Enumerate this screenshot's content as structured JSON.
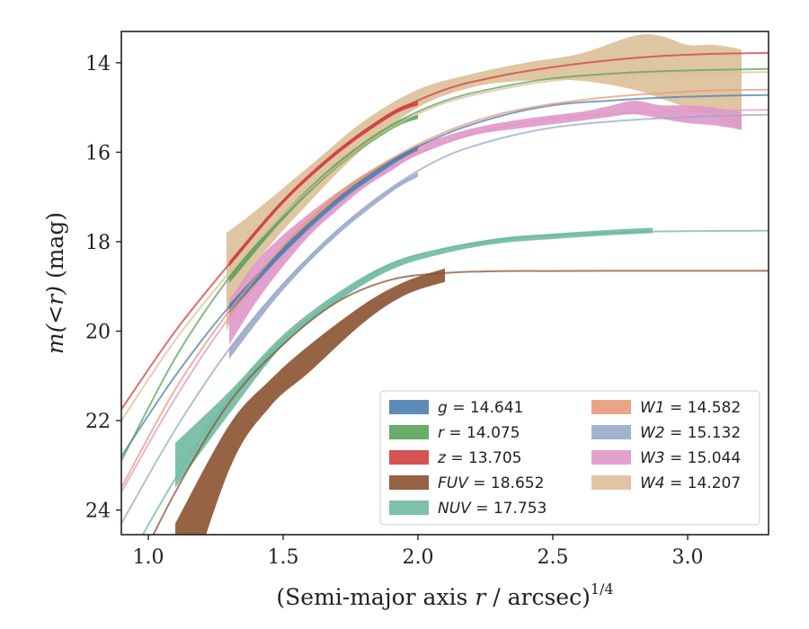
{
  "chart_data": {
    "type": "line",
    "xlabel_main": "(Semi-major axis ",
    "xlabel_var": "r",
    "xlabel_tail": " / arcsec)",
    "xlabel_sup": "1/4",
    "ylabel_main": "m(<r)",
    "ylabel_tail": " (mag)",
    "xlim": [
      0.9,
      3.3
    ],
    "ylim": [
      24.55,
      13.3
    ],
    "y_inverted": true,
    "xticks": [
      1.0,
      1.5,
      2.0,
      2.5,
      3.0
    ],
    "xtick_labels": [
      "1.0",
      "1.5",
      "2.0",
      "2.5",
      "3.0"
    ],
    "yticks": [
      14,
      16,
      18,
      20,
      22,
      24
    ],
    "ytick_labels": [
      "14",
      "16",
      "18",
      "20",
      "22",
      "24"
    ],
    "grid": false,
    "legend_position": "lower-right",
    "series": [
      {
        "name": "g",
        "mag": "14.641",
        "color": "#4c7fb0",
        "model_x": [
          0.9,
          1.1,
          1.3,
          1.5,
          1.7,
          1.9,
          2.1,
          2.3,
          2.5,
          2.7,
          2.9,
          3.1,
          3.3
        ],
        "model_y": [
          22.8,
          21.0,
          19.45,
          18.2,
          17.05,
          16.2,
          15.6,
          15.2,
          14.95,
          14.85,
          14.78,
          14.74,
          14.72
        ],
        "obs_x": [
          1.3,
          1.5,
          1.7,
          1.9,
          2.0
        ],
        "obs_y": [
          19.5,
          18.2,
          17.1,
          16.25,
          15.9
        ],
        "obs_err": [
          0.1,
          0.08,
          0.06,
          0.05,
          0.05
        ]
      },
      {
        "name": "r",
        "mag": "14.075",
        "color": "#5aa35a",
        "model_x": [
          0.9,
          1.1,
          1.3,
          1.5,
          1.7,
          1.9,
          2.1,
          2.3,
          2.5,
          2.7,
          2.9,
          3.1,
          3.3
        ],
        "model_y": [
          22.9,
          20.6,
          18.8,
          17.4,
          16.25,
          15.4,
          14.85,
          14.55,
          14.35,
          14.25,
          14.19,
          14.16,
          14.14
        ],
        "obs_x": [
          1.3,
          1.5,
          1.7,
          1.9,
          2.0
        ],
        "obs_y": [
          18.85,
          17.45,
          16.3,
          15.45,
          15.2
        ],
        "obs_err": [
          0.08,
          0.06,
          0.05,
          0.05,
          0.05
        ]
      },
      {
        "name": "z",
        "mag": "13.705",
        "color": "#d04040",
        "model_x": [
          0.9,
          1.1,
          1.3,
          1.5,
          1.7,
          1.9,
          2.1,
          2.3,
          2.5,
          2.7,
          2.9,
          3.1,
          3.3
        ],
        "model_y": [
          21.75,
          20.0,
          18.5,
          17.1,
          16.0,
          15.15,
          14.6,
          14.3,
          14.1,
          13.95,
          13.85,
          13.8,
          13.78
        ],
        "obs_x": [
          1.3,
          1.5,
          1.7,
          1.9,
          2.0
        ],
        "obs_y": [
          18.5,
          17.1,
          16.0,
          15.15,
          14.9
        ],
        "obs_err": [
          0.06,
          0.05,
          0.05,
          0.05,
          0.05
        ]
      },
      {
        "name": "FUV",
        "mag": "18.652",
        "color": "#8b5230",
        "model_x": [
          0.9,
          1.1,
          1.3,
          1.5,
          1.7,
          1.9,
          2.1,
          2.3,
          2.5,
          2.7,
          2.9,
          3.1,
          3.3
        ],
        "model_y": [
          26.0,
          23.6,
          21.6,
          20.3,
          19.35,
          18.85,
          18.7,
          18.66,
          18.655,
          18.652,
          18.652,
          18.652,
          18.652
        ],
        "obs_x": [
          1.1,
          1.3,
          1.45,
          1.6,
          1.8,
          1.95,
          2.1
        ],
        "obs_y": [
          25.5,
          22.6,
          21.4,
          20.6,
          19.6,
          19.05,
          18.75
        ],
        "obs_err": [
          1.2,
          0.5,
          0.3,
          0.3,
          0.2,
          0.15,
          0.15
        ]
      },
      {
        "name": "NUV",
        "mag": "17.753",
        "color": "#6fbaa2",
        "model_x": [
          0.9,
          1.1,
          1.3,
          1.5,
          1.7,
          1.9,
          2.1,
          2.3,
          2.5,
          2.7,
          2.9,
          3.1,
          3.3
        ],
        "model_y": [
          25.4,
          23.3,
          21.5,
          20.2,
          19.25,
          18.5,
          18.15,
          17.95,
          17.85,
          17.8,
          17.77,
          17.76,
          17.753
        ],
        "obs_x": [
          1.1,
          1.3,
          1.5,
          1.7,
          1.9,
          2.1,
          2.3,
          2.5,
          2.7,
          2.87
        ],
        "obs_y": [
          23.0,
          21.6,
          20.2,
          19.25,
          18.55,
          18.2,
          17.98,
          17.88,
          17.8,
          17.75
        ],
        "obs_err": [
          0.5,
          0.25,
          0.12,
          0.1,
          0.08,
          0.06,
          0.06,
          0.06,
          0.06,
          0.06
        ]
      },
      {
        "name": "W1",
        "mag": "14.582",
        "color": "#e89a7a",
        "model_x": [
          0.9,
          1.1,
          1.3,
          1.5,
          1.7,
          1.9,
          2.1,
          2.3,
          2.5,
          2.7,
          2.9,
          3.1,
          3.3
        ],
        "model_y": [
          23.5,
          21.3,
          19.55,
          18.1,
          16.95,
          16.15,
          15.55,
          15.15,
          14.92,
          14.77,
          14.68,
          14.62,
          14.6
        ],
        "obs_x": [
          1.3,
          1.5,
          1.7,
          1.9,
          2.0
        ],
        "obs_y": [
          19.6,
          18.15,
          17.0,
          16.2,
          15.95
        ],
        "obs_err": [
          0.1,
          0.08,
          0.06,
          0.05,
          0.05
        ]
      },
      {
        "name": "W2",
        "mag": "15.132",
        "color": "#9aaac8",
        "model_x": [
          0.9,
          1.1,
          1.3,
          1.5,
          1.7,
          1.9,
          2.1,
          2.3,
          2.5,
          2.7,
          2.9,
          3.1,
          3.3
        ],
        "model_y": [
          24.3,
          22.2,
          20.4,
          18.95,
          17.75,
          16.8,
          16.1,
          15.7,
          15.45,
          15.32,
          15.24,
          15.19,
          15.16
        ],
        "obs_x": [
          1.3,
          1.5,
          1.7,
          1.9,
          2.0
        ],
        "obs_y": [
          20.5,
          19.0,
          17.8,
          16.85,
          16.5
        ],
        "obs_err": [
          0.12,
          0.08,
          0.06,
          0.05,
          0.05
        ]
      },
      {
        "name": "W3",
        "mag": "15.044",
        "color": "#e098c8",
        "model_x": [
          0.9,
          1.1,
          1.3,
          1.5,
          1.7,
          1.9,
          2.1,
          2.3,
          2.5,
          2.7,
          2.9,
          3.1,
          3.3
        ],
        "model_y": [
          23.6,
          21.5,
          19.7,
          18.35,
          17.2,
          16.35,
          15.8,
          15.45,
          15.25,
          15.15,
          15.1,
          15.07,
          15.05
        ],
        "obs_x": [
          1.3,
          1.4,
          1.5,
          1.6,
          1.7,
          1.8,
          1.9,
          2.0,
          2.2,
          2.4,
          2.6,
          2.7,
          2.8,
          2.9,
          3.0,
          3.1,
          3.2
        ],
        "obs_y": [
          19.8,
          18.9,
          18.2,
          17.6,
          17.1,
          16.65,
          16.3,
          15.95,
          15.55,
          15.35,
          15.2,
          15.1,
          15.0,
          15.1,
          15.15,
          15.2,
          15.3
        ],
        "obs_err": [
          0.5,
          0.45,
          0.35,
          0.25,
          0.2,
          0.15,
          0.12,
          0.1,
          0.08,
          0.1,
          0.1,
          0.12,
          0.15,
          0.15,
          0.2,
          0.2,
          0.2
        ]
      },
      {
        "name": "W4",
        "mag": "14.207",
        "color": "#ddbf98",
        "model_x": [
          0.9,
          1.1,
          1.3,
          1.5,
          1.7,
          1.9,
          2.1,
          2.3,
          2.5,
          2.7,
          2.9,
          3.1,
          3.3
        ],
        "model_y": [
          22.0,
          20.2,
          18.7,
          17.4,
          16.3,
          15.45,
          14.9,
          14.6,
          14.4,
          14.3,
          14.24,
          14.22,
          14.21
        ],
        "obs_x": [
          1.29,
          1.4,
          1.6,
          1.8,
          2.0,
          2.2,
          2.4,
          2.6,
          2.8,
          2.9,
          3.0,
          3.1,
          3.2
        ],
        "obs_y": [
          18.9,
          17.9,
          16.7,
          15.6,
          14.8,
          14.4,
          14.2,
          14.1,
          14.0,
          14.1,
          14.3,
          14.4,
          14.6
        ],
        "obs_err": [
          1.1,
          0.6,
          0.4,
          0.3,
          0.2,
          0.15,
          0.2,
          0.3,
          0.6,
          0.7,
          0.7,
          0.8,
          0.9
        ]
      }
    ]
  }
}
